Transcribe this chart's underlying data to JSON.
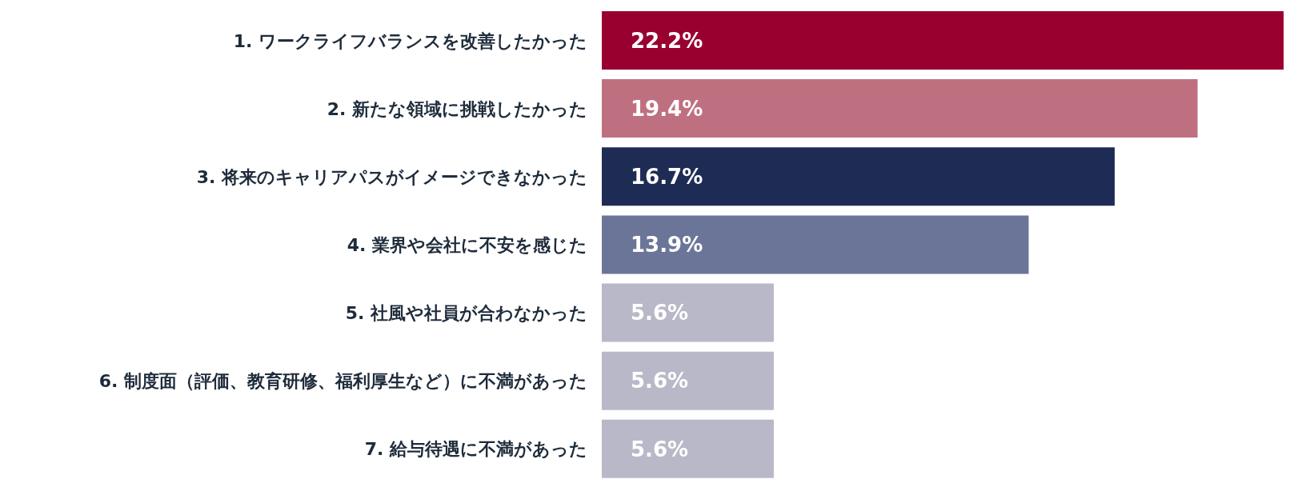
{
  "chart_data": {
    "type": "bar",
    "orientation": "horizontal",
    "categories": [
      "1. ワークライフバランスを改善したかった",
      "2. 新たな領域に挑戦したかった",
      "3. 将来のキャリアパスがイメージできなかった",
      "4. 業界や会社に不安を感じた",
      "5. 社風や社員が合わなかった",
      "6. 制度面（評価、教育研修、福利厚生など）に不満があった",
      "7. 給与待遇に不満があった"
    ],
    "values": [
      22.2,
      19.4,
      16.7,
      13.9,
      5.6,
      5.6,
      5.6
    ],
    "colors": [
      "#990030",
      "#bf7080",
      "#1e2b55",
      "#6b7597",
      "#b8b8c8",
      "#b8b8c8",
      "#b8b8c8"
    ],
    "value_labels": [
      "22.2%",
      "19.4%",
      "16.7%",
      "13.9%",
      "5.6%",
      "5.6%",
      "5.6%"
    ]
  }
}
